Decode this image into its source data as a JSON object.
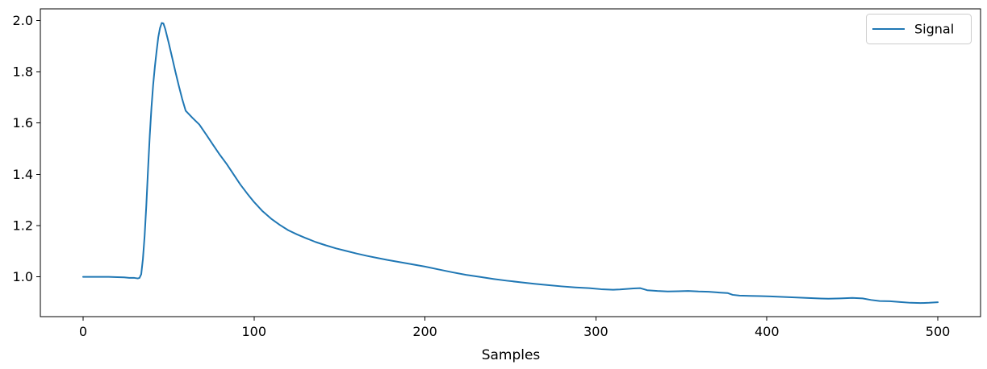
{
  "figure": {
    "background": "#ffffff"
  },
  "chart_data": {
    "type": "line",
    "title": "",
    "xlabel": "Samples",
    "ylabel": "",
    "grid": false,
    "legend_position": "upper right",
    "xlim": [
      -25,
      525
    ],
    "ylim": [
      0.845,
      2.045
    ],
    "x_ticks": [
      0,
      100,
      200,
      300,
      400,
      500
    ],
    "x_tick_labels": [
      "0",
      "100",
      "200",
      "300",
      "400",
      "500"
    ],
    "y_ticks": [
      1.0,
      1.2,
      1.4,
      1.6,
      1.8,
      2.0
    ],
    "y_tick_labels": [
      "1.0",
      "1.2",
      "1.4",
      "1.6",
      "1.8",
      "2.0"
    ],
    "series": [
      {
        "name": "Signal",
        "color": "#1f77b4",
        "points": [
          [
            0,
            1.0
          ],
          [
            5,
            1.0
          ],
          [
            10,
            1.0
          ],
          [
            15,
            1.0
          ],
          [
            20,
            0.999
          ],
          [
            24,
            0.998
          ],
          [
            27,
            0.996
          ],
          [
            30,
            0.996
          ],
          [
            32,
            0.994
          ],
          [
            33,
            0.996
          ],
          [
            34,
            1.01
          ],
          [
            35,
            1.07
          ],
          [
            36,
            1.16
          ],
          [
            37,
            1.28
          ],
          [
            38,
            1.42
          ],
          [
            39,
            1.55
          ],
          [
            40,
            1.66
          ],
          [
            41,
            1.75
          ],
          [
            42,
            1.82
          ],
          [
            43,
            1.88
          ],
          [
            44,
            1.935
          ],
          [
            45,
            1.97
          ],
          [
            46,
            1.99
          ],
          [
            47,
            1.988
          ],
          [
            48,
            1.968
          ],
          [
            50,
            1.915
          ],
          [
            52,
            1.858
          ],
          [
            54,
            1.8
          ],
          [
            56,
            1.745
          ],
          [
            58,
            1.693
          ],
          [
            60,
            1.648
          ],
          [
            64,
            1.62
          ],
          [
            68,
            1.594
          ],
          [
            72,
            1.555
          ],
          [
            76,
            1.515
          ],
          [
            80,
            1.476
          ],
          [
            84,
            1.44
          ],
          [
            88,
            1.4
          ],
          [
            92,
            1.36
          ],
          [
            96,
            1.325
          ],
          [
            100,
            1.292
          ],
          [
            105,
            1.256
          ],
          [
            110,
            1.227
          ],
          [
            115,
            1.203
          ],
          [
            120,
            1.182
          ],
          [
            125,
            1.166
          ],
          [
            130,
            1.152
          ],
          [
            136,
            1.136
          ],
          [
            142,
            1.123
          ],
          [
            148,
            1.111
          ],
          [
            154,
            1.101
          ],
          [
            160,
            1.091
          ],
          [
            166,
            1.082
          ],
          [
            172,
            1.074
          ],
          [
            178,
            1.066
          ],
          [
            184,
            1.059
          ],
          [
            190,
            1.052
          ],
          [
            196,
            1.045
          ],
          [
            200,
            1.04
          ],
          [
            208,
            1.029
          ],
          [
            216,
            1.018
          ],
          [
            224,
            1.008
          ],
          [
            232,
            1.0
          ],
          [
            240,
            0.992
          ],
          [
            248,
            0.985
          ],
          [
            256,
            0.979
          ],
          [
            264,
            0.973
          ],
          [
            272,
            0.968
          ],
          [
            280,
            0.963
          ],
          [
            288,
            0.959
          ],
          [
            296,
            0.956
          ],
          [
            303,
            0.952
          ],
          [
            310,
            0.95
          ],
          [
            314,
            0.951
          ],
          [
            318,
            0.953
          ],
          [
            322,
            0.955
          ],
          [
            326,
            0.956
          ],
          [
            330,
            0.948
          ],
          [
            336,
            0.945
          ],
          [
            342,
            0.943
          ],
          [
            348,
            0.944
          ],
          [
            354,
            0.945
          ],
          [
            360,
            0.943
          ],
          [
            366,
            0.942
          ],
          [
            372,
            0.939
          ],
          [
            377,
            0.937
          ],
          [
            380,
            0.93
          ],
          [
            384,
            0.927
          ],
          [
            390,
            0.926
          ],
          [
            396,
            0.925
          ],
          [
            402,
            0.924
          ],
          [
            409,
            0.922
          ],
          [
            416,
            0.92
          ],
          [
            423,
            0.918
          ],
          [
            430,
            0.916
          ],
          [
            436,
            0.915
          ],
          [
            443,
            0.916
          ],
          [
            450,
            0.918
          ],
          [
            456,
            0.916
          ],
          [
            461,
            0.91
          ],
          [
            466,
            0.906
          ],
          [
            472,
            0.905
          ],
          [
            478,
            0.902
          ],
          [
            484,
            0.899
          ],
          [
            490,
            0.898
          ],
          [
            495,
            0.899
          ],
          [
            500,
            0.901
          ]
        ]
      }
    ]
  }
}
